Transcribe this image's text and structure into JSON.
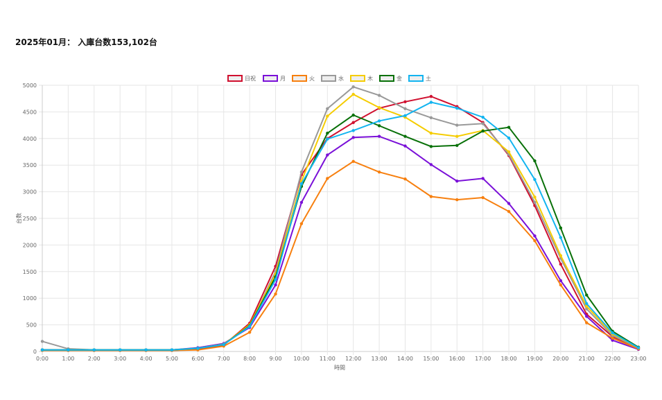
{
  "header": {
    "title": "2025年01月： 入庫台数153,102台"
  },
  "chart_data": {
    "type": "line",
    "xlabel": "時間",
    "ylabel": "台数",
    "ylim": [
      0,
      5000
    ],
    "yticks": [
      0,
      500,
      1000,
      1500,
      2000,
      2500,
      3000,
      3500,
      4000,
      4500,
      5000
    ],
    "grid": true,
    "legend_position": "top-center",
    "x": [
      "0:00",
      "1:00",
      "2:00",
      "3:00",
      "4:00",
      "5:00",
      "6:00",
      "7:00",
      "8:00",
      "9:00",
      "10:00",
      "11:00",
      "12:00",
      "13:00",
      "14:00",
      "15:00",
      "16:00",
      "17:00",
      "18:00",
      "19:00",
      "20:00",
      "21:00",
      "22:00",
      "23:00"
    ],
    "series": [
      {
        "name": "日祝",
        "color": "#d0102f",
        "values": [
          30,
          20,
          20,
          20,
          20,
          20,
          40,
          120,
          530,
          1600,
          3320,
          4000,
          4300,
          4570,
          4690,
          4790,
          4600,
          4300,
          3680,
          2740,
          1640,
          700,
          280,
          60
        ]
      },
      {
        "name": "月",
        "color": "#7a10d8",
        "values": [
          30,
          30,
          30,
          30,
          30,
          30,
          70,
          150,
          450,
          1250,
          2800,
          3690,
          4020,
          4040,
          3860,
          3510,
          3200,
          3250,
          2780,
          2170,
          1330,
          660,
          210,
          40
        ]
      },
      {
        "name": "火",
        "color": "#f77f0e",
        "values": [
          20,
          20,
          20,
          20,
          20,
          20,
          30,
          100,
          360,
          1080,
          2400,
          3250,
          3570,
          3370,
          3240,
          2910,
          2850,
          2890,
          2630,
          2080,
          1250,
          540,
          250,
          50
        ]
      },
      {
        "name": "水",
        "color": "#999999",
        "values": [
          190,
          50,
          30,
          30,
          30,
          30,
          60,
          140,
          480,
          1500,
          3370,
          4560,
          4970,
          4810,
          4560,
          4390,
          4250,
          4280,
          3700,
          2800,
          1750,
          800,
          300,
          70
        ]
      },
      {
        "name": "木",
        "color": "#f5cc00",
        "values": [
          30,
          30,
          30,
          30,
          30,
          30,
          60,
          130,
          500,
          1450,
          3200,
          4420,
          4830,
          4580,
          4400,
          4100,
          4040,
          4150,
          3750,
          2900,
          1800,
          850,
          330,
          70
        ]
      },
      {
        "name": "金",
        "color": "#087008",
        "values": [
          30,
          30,
          30,
          30,
          30,
          30,
          60,
          130,
          480,
          1400,
          3100,
          4100,
          4440,
          4240,
          4040,
          3850,
          3870,
          4140,
          4210,
          3580,
          2320,
          1060,
          380,
          80
        ]
      },
      {
        "name": "土",
        "color": "#12b4f0",
        "values": [
          30,
          30,
          30,
          30,
          30,
          30,
          60,
          130,
          470,
          1350,
          3150,
          3990,
          4150,
          4330,
          4430,
          4680,
          4570,
          4400,
          4010,
          3230,
          2140,
          900,
          350,
          70
        ]
      }
    ]
  }
}
